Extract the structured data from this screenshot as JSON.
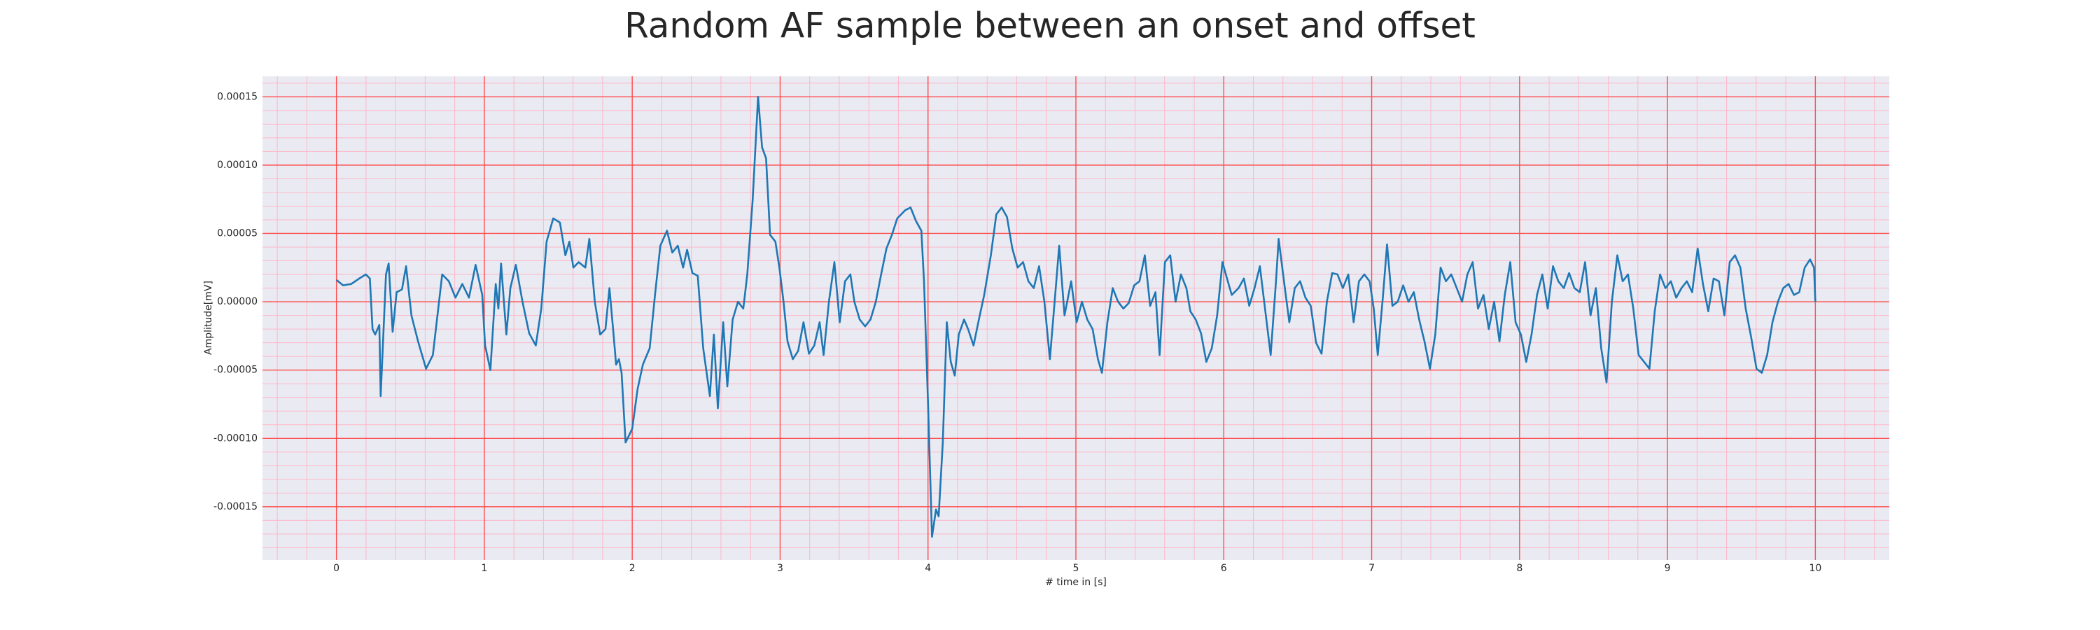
{
  "chart_data": {
    "type": "line",
    "title": "Random AF sample between an onset and offset",
    "xlabel": "# time in [s]",
    "ylabel": "Amplitude[mV]",
    "color": "#1f77b4",
    "grid": true,
    "minor_grid": true,
    "xlim": [
      -0.5,
      10.5
    ],
    "ylim": [
      -0.000189,
      0.000165
    ],
    "xticks": [
      0,
      1,
      2,
      3,
      4,
      5,
      6,
      7,
      8,
      9,
      10
    ],
    "yticks": [
      {
        "value": -0.00015,
        "label": "-0.00015"
      },
      {
        "value": -0.0001,
        "label": "-0.00010"
      },
      {
        "value": -5e-05,
        "label": "-0.00005"
      },
      {
        "value": 0,
        "label": "0.00000"
      },
      {
        "value": 5e-05,
        "label": "0.00005"
      },
      {
        "value": 0.0001,
        "label": "0.00010"
      },
      {
        "value": 0.00015,
        "label": "0.00015"
      }
    ],
    "x": [
      0,
      0.045,
      0.1,
      0.154,
      0.199,
      0.226,
      0.244,
      0.262,
      0.29,
      0.299,
      0.335,
      0.353,
      0.38,
      0.407,
      0.443,
      0.471,
      0.507,
      0.552,
      0.606,
      0.652,
      0.715,
      0.76,
      0.805,
      0.851,
      0.896,
      0.941,
      0.986,
      1.005,
      1.041,
      1.077,
      1.095,
      1.113,
      1.149,
      1.176,
      1.213,
      1.258,
      1.303,
      1.348,
      1.385,
      1.421,
      1.466,
      1.511,
      1.548,
      1.575,
      1.602,
      1.638,
      1.683,
      1.71,
      1.747,
      1.783,
      1.819,
      1.846,
      1.873,
      1.891,
      1.91,
      1.928,
      1.955,
      2.0,
      2.036,
      2.072,
      2.118,
      2.154,
      2.19,
      2.235,
      2.271,
      2.308,
      2.344,
      2.371,
      2.407,
      2.443,
      2.48,
      2.525,
      2.552,
      2.579,
      2.615,
      2.643,
      2.679,
      2.715,
      2.751,
      2.778,
      2.814,
      2.851,
      2.878,
      2.905,
      2.932,
      2.968,
      2.995,
      3.023,
      3.05,
      3.086,
      3.122,
      3.158,
      3.195,
      3.231,
      3.267,
      3.294,
      3.33,
      3.367,
      3.403,
      3.439,
      3.475,
      3.502,
      3.538,
      3.575,
      3.611,
      3.647,
      3.683,
      3.719,
      3.756,
      3.792,
      3.846,
      3.882,
      3.919,
      3.955,
      3.973,
      4.0,
      4.027,
      4.054,
      4.072,
      4.1,
      4.127,
      4.154,
      4.181,
      4.208,
      4.244,
      4.271,
      4.308,
      4.344,
      4.38,
      4.425,
      4.462,
      4.498,
      4.534,
      4.57,
      4.606,
      4.643,
      4.679,
      4.715,
      4.751,
      4.787,
      4.824,
      4.86,
      4.887,
      4.923,
      4.968,
      5.005,
      5.041,
      5.077,
      5.113,
      5.149,
      5.176,
      5.213,
      5.249,
      5.285,
      5.321,
      5.357,
      5.394,
      5.43,
      5.466,
      5.502,
      5.538,
      5.566,
      5.602,
      5.638,
      5.674,
      5.71,
      5.747,
      5.774,
      5.81,
      5.846,
      5.882,
      5.919,
      5.955,
      5.991,
      6.027,
      6.054,
      6.1,
      6.136,
      6.172,
      6.208,
      6.244,
      6.281,
      6.317,
      6.353,
      6.371,
      6.407,
      6.443,
      6.48,
      6.516,
      6.552,
      6.588,
      6.624,
      6.661,
      6.697,
      6.733,
      6.769,
      6.805,
      6.842,
      6.878,
      6.914,
      6.95,
      6.986,
      7.014,
      7.041,
      7.077,
      7.104,
      7.14,
      7.176,
      7.213,
      7.249,
      7.285,
      7.321,
      7.357,
      7.394,
      7.43,
      7.466,
      7.502,
      7.538,
      7.575,
      7.611,
      7.647,
      7.683,
      7.719,
      7.756,
      7.792,
      7.828,
      7.864,
      7.9,
      7.937,
      7.973,
      8.009,
      8.045,
      8.081,
      8.118,
      8.154,
      8.19,
      8.226,
      8.262,
      8.299,
      8.335,
      8.371,
      8.407,
      8.443,
      8.48,
      8.516,
      8.552,
      8.588,
      8.624,
      8.661,
      8.697,
      8.733,
      8.769,
      8.805,
      8.842,
      8.878,
      8.914,
      8.95,
      8.986,
      9.023,
      9.059,
      9.095,
      9.131,
      9.167,
      9.204,
      9.24,
      9.276,
      9.312,
      9.348,
      9.385,
      9.421,
      9.457,
      9.493,
      9.529,
      9.566,
      9.602,
      9.638,
      9.674,
      9.71,
      9.747,
      9.783,
      9.819,
      9.855,
      9.891,
      9.928,
      9.964,
      9.991,
      10.0
    ],
    "values": [
      1.6e-05,
      1.2e-05,
      1.3e-05,
      1.7e-05,
      2e-05,
      1.7e-05,
      -2e-05,
      -2.4e-05,
      -1.7e-05,
      -6.9e-05,
      2e-05,
      2.8e-05,
      -2.2e-05,
      7e-06,
      9e-06,
      2.6e-05,
      -1e-05,
      -2.9e-05,
      -4.9e-05,
      -3.9e-05,
      2e-05,
      1.5e-05,
      3e-06,
      1.3e-05,
      3e-06,
      2.7e-05,
      5e-06,
      -3.2e-05,
      -5e-05,
      1.3e-05,
      -5e-06,
      2.8e-05,
      -2.4e-05,
      1e-05,
      2.7e-05,
      0,
      -2.3e-05,
      -3.2e-05,
      -5e-06,
      4.4e-05,
      6.1e-05,
      5.8e-05,
      3.4e-05,
      4.4e-05,
      2.5e-05,
      2.9e-05,
      2.5e-05,
      4.6e-05,
      0,
      -2.4e-05,
      -2e-05,
      1e-05,
      -2.3e-05,
      -4.6e-05,
      -4.2e-05,
      -5.2e-05,
      -0.000103,
      -9.3e-05,
      -6.4e-05,
      -4.6e-05,
      -3.4e-05,
      5e-06,
      4.1e-05,
      5.2e-05,
      3.6e-05,
      4.1e-05,
      2.5e-05,
      3.8e-05,
      2.1e-05,
      1.9e-05,
      -3.4e-05,
      -6.9e-05,
      -2.4e-05,
      -7.8e-05,
      -1.5e-05,
      -6.2e-05,
      -1.3e-05,
      0,
      -5e-06,
      2e-05,
      7.4e-05,
      0.00015,
      0.000113,
      0.000105,
      4.9e-05,
      4.4e-05,
      2.5e-05,
      0,
      -2.9e-05,
      -4.2e-05,
      -3.6e-05,
      -1.5e-05,
      -3.8e-05,
      -3.2e-05,
      -1.5e-05,
      -3.9e-05,
      0,
      2.9e-05,
      -1.5e-05,
      1.5e-05,
      2e-05,
      0,
      -1.3e-05,
      -1.8e-05,
      -1.3e-05,
      0,
      2e-05,
      3.9e-05,
      4.9e-05,
      6.1e-05,
      6.7e-05,
      6.9e-05,
      5.9e-05,
      5.2e-05,
      1.5e-05,
      -7.4e-05,
      -0.000172,
      -0.000152,
      -0.000157,
      -0.000103,
      -1.5e-05,
      -4.4e-05,
      -5.4e-05,
      -2.4e-05,
      -1.3e-05,
      -2e-05,
      -3.2e-05,
      -1.3e-05,
      5e-06,
      3.4e-05,
      6.4e-05,
      6.9e-05,
      6.2e-05,
      3.9e-05,
      2.5e-05,
      2.9e-05,
      1.5e-05,
      1e-05,
      2.6e-05,
      0,
      -4.2e-05,
      5e-06,
      4.1e-05,
      -1e-05,
      1.5e-05,
      -1.5e-05,
      0,
      -1.3e-05,
      -2e-05,
      -4.2e-05,
      -5.2e-05,
      -1.5e-05,
      1e-05,
      0,
      -5e-06,
      -1e-06,
      1.2e-05,
      1.5e-05,
      3.4e-05,
      -3e-06,
      7e-06,
      -3.9e-05,
      2.9e-05,
      3.4e-05,
      0,
      2e-05,
      1e-05,
      -7e-06,
      -1.3e-05,
      -2.3e-05,
      -4.4e-05,
      -3.4e-05,
      -1e-05,
      2.9e-05,
      1.5e-05,
      5e-06,
      1e-05,
      1.7e-05,
      -3e-06,
      1e-05,
      2.6e-05,
      -7e-06,
      -3.9e-05,
      1.5e-05,
      4.6e-05,
      1.5e-05,
      -1.5e-05,
      1e-05,
      1.5e-05,
      3e-06,
      -3e-06,
      -3e-05,
      -3.8e-05,
      0,
      2.1e-05,
      2e-05,
      1e-05,
      2e-05,
      -1.5e-05,
      1.5e-05,
      2e-05,
      1.5e-05,
      -5e-06,
      -3.9e-05,
      5e-06,
      4.2e-05,
      -3e-06,
      0,
      1.2e-05,
      0,
      7e-06,
      -1.3e-05,
      -2.9e-05,
      -4.9e-05,
      -2.4e-05,
      2.5e-05,
      1.5e-05,
      2e-05,
      1e-05,
      0,
      2e-05,
      2.9e-05,
      -5e-06,
      5e-06,
      -2e-05,
      0,
      -2.9e-05,
      5e-06,
      2.9e-05,
      -1.5e-05,
      -2.4e-05,
      -4.4e-05,
      -2.4e-05,
      5e-06,
      2e-05,
      -5e-06,
      2.6e-05,
      1.5e-05,
      1e-05,
      2.1e-05,
      1e-05,
      7e-06,
      2.9e-05,
      -1e-05,
      1e-05,
      -3.4e-05,
      -5.9e-05,
      0,
      3.4e-05,
      1.5e-05,
      2e-05,
      -5e-06,
      -3.9e-05,
      -4.4e-05,
      -4.9e-05,
      -7e-06,
      2e-05,
      1e-05,
      1.5e-05,
      3e-06,
      1e-05,
      1.5e-05,
      7e-06,
      3.9e-05,
      1.3e-05,
      -7e-06,
      1.7e-05,
      1.5e-05,
      -1e-05,
      2.9e-05,
      3.4e-05,
      2.5e-05,
      -5e-06,
      -2.6e-05,
      -4.9e-05,
      -5.2e-05,
      -3.9e-05,
      -1.5e-05,
      0,
      1e-05,
      1.3e-05,
      5e-06,
      7e-06,
      2.5e-05,
      3.1e-05,
      2.5e-05,
      0
    ]
  }
}
